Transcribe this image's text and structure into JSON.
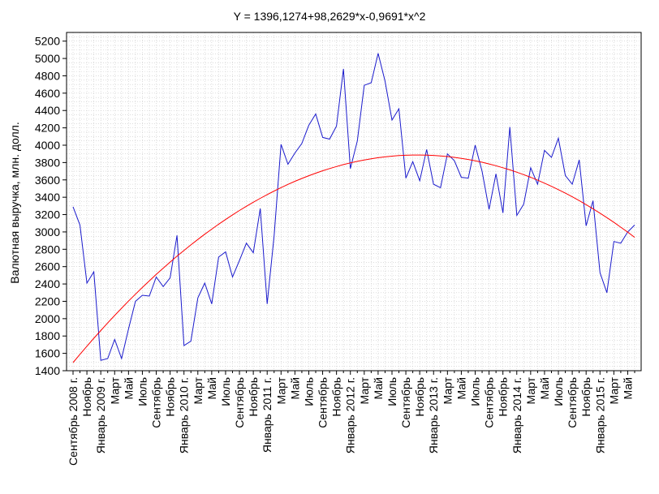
{
  "chart_data": {
    "type": "line",
    "title": "Y = 1396,1274+98,2629*x-0,9691*x^2",
    "xlabel": "",
    "ylabel": "Валютная выручка, млн. долл.",
    "ylim": [
      1400,
      5300
    ],
    "yticks": [
      1400,
      1600,
      1800,
      2000,
      2200,
      2400,
      2600,
      2800,
      3000,
      3200,
      3400,
      3600,
      3800,
      4000,
      4200,
      4400,
      4600,
      4800,
      5000,
      5200
    ],
    "grid": true,
    "x_tick_labels": [
      "Сентябрь 2008 г.",
      "Ноябрь",
      "Январь 2009 г.",
      "Март",
      "Май",
      "Июль",
      "Сентябрь",
      "Ноябрь",
      "Январь 2010 г.",
      "Март",
      "Май",
      "Июль",
      "Сентябрь",
      "Ноябрь",
      "Январь 2011 г.",
      "Март",
      "Май",
      "Июль",
      "Сентябрь",
      "Ноябрь",
      "Январь 2012 г.",
      "Март",
      "Май",
      "Июль",
      "Сентябрь",
      "Ноябрь",
      "Январь 2013 г.",
      "Март",
      "Май",
      "Июль",
      "Сентябрь",
      "Ноябрь",
      "Январь 2014 г.",
      "Март",
      "Май",
      "Июль",
      "Сентябрь",
      "Ноябрь",
      "Январь 2015 г.",
      "Март",
      "Май"
    ],
    "series": [
      {
        "color": "#1a1acc",
        "values": [
          3290,
          3080,
          2410,
          2540,
          1520,
          1540,
          1760,
          1540,
          1880,
          2200,
          2270,
          2260,
          2480,
          2370,
          2470,
          2960,
          1690,
          1740,
          2240,
          2410,
          2170,
          2710,
          2770,
          2480,
          2670,
          2870,
          2760,
          3270,
          2170,
          2960,
          4010,
          3780,
          3910,
          4020,
          4230,
          4360,
          4090,
          4070,
          4220,
          4880,
          3730,
          4050,
          4690,
          4720,
          5060,
          4740,
          4290,
          4420,
          3620,
          3810,
          3590,
          3950,
          3550,
          3510,
          3900,
          3820,
          3630,
          3620,
          4000,
          3700,
          3260,
          3670,
          3220,
          4210,
          3190,
          3320,
          3740,
          3550,
          3940,
          3860,
          4080,
          3650,
          3550,
          3830,
          3070,
          3360,
          2530,
          2300,
          2890,
          2870,
          3000,
          3080
        ]
      },
      {
        "color": "#ff0000",
        "fit": {
          "a": 1396.1274,
          "b": 98.2629,
          "c": -0.9691
        }
      }
    ]
  }
}
